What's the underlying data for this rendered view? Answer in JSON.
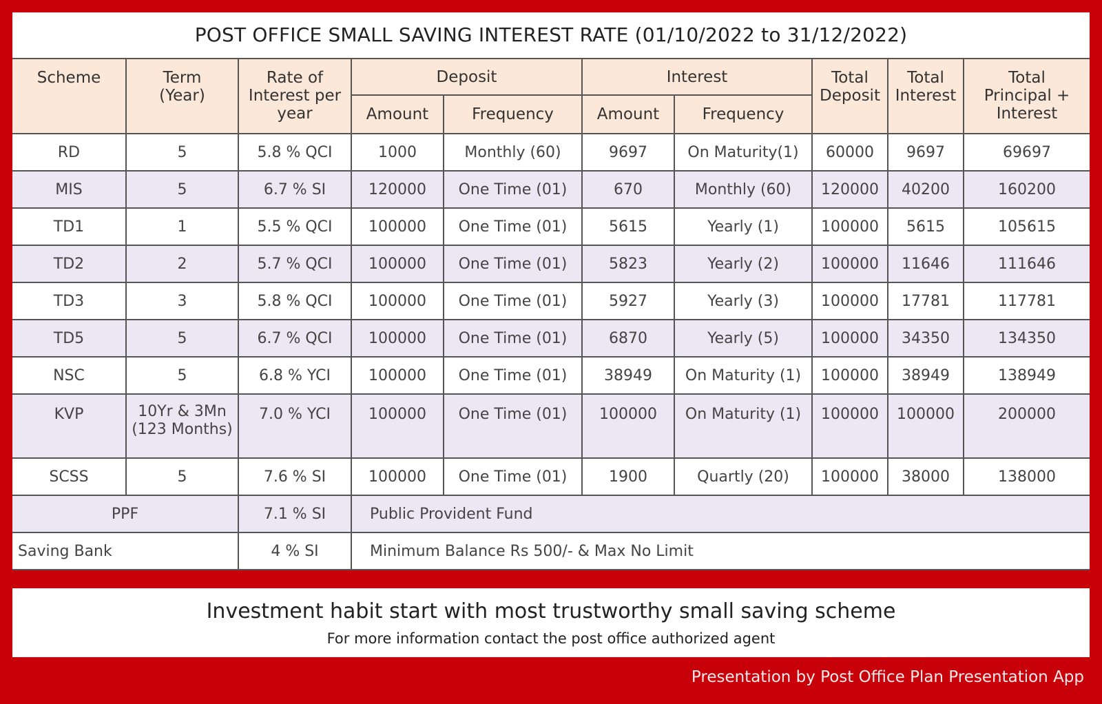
{
  "title": "POST OFFICE SMALL SAVING INTEREST RATE (01/10/2022 to 31/12/2022)",
  "headers": {
    "scheme": "Scheme",
    "term": [
      "Term",
      "(Year)"
    ],
    "rate": [
      "Rate of",
      "Interest per",
      "year"
    ],
    "deposit": "Deposit",
    "interest": "Interest",
    "amount": "Amount",
    "frequency": "Frequency",
    "total_deposit": [
      "Total",
      "Deposit"
    ],
    "total_interest": [
      "Total",
      "Interest"
    ],
    "total_principal": [
      "Total",
      "Principal +",
      "Interest"
    ]
  },
  "rows": [
    {
      "scheme": "RD",
      "term": "5",
      "rate": "5.8 % QCI",
      "dep_amount": "1000",
      "dep_freq": "Monthly (60)",
      "int_amount": "9697",
      "int_freq": "On Maturity(1)",
      "total_deposit": "60000",
      "total_interest": "9697",
      "total": "69697"
    },
    {
      "scheme": "MIS",
      "term": "5",
      "rate": "6.7 % SI",
      "dep_amount": "120000",
      "dep_freq": "One Time (01)",
      "int_amount": "670",
      "int_freq": "Monthly (60)",
      "total_deposit": "120000",
      "total_interest": "40200",
      "total": "160200"
    },
    {
      "scheme": "TD1",
      "term": "1",
      "rate": "5.5 % QCI",
      "dep_amount": "100000",
      "dep_freq": "One Time (01)",
      "int_amount": "5615",
      "int_freq": "Yearly (1)",
      "total_deposit": "100000",
      "total_interest": "5615",
      "total": "105615"
    },
    {
      "scheme": "TD2",
      "term": "2",
      "rate": "5.7 % QCI",
      "dep_amount": "100000",
      "dep_freq": "One Time (01)",
      "int_amount": "5823",
      "int_freq": "Yearly (2)",
      "total_deposit": "100000",
      "total_interest": "11646",
      "total": "111646"
    },
    {
      "scheme": "TD3",
      "term": "3",
      "rate": "5.8 % QCI",
      "dep_amount": "100000",
      "dep_freq": "One Time (01)",
      "int_amount": "5927",
      "int_freq": "Yearly (3)",
      "total_deposit": "100000",
      "total_interest": "17781",
      "total": "117781"
    },
    {
      "scheme": "TD5",
      "term": "5",
      "rate": "6.7 % QCI",
      "dep_amount": "100000",
      "dep_freq": "One Time (01)",
      "int_amount": "6870",
      "int_freq": "Yearly (5)",
      "total_deposit": "100000",
      "total_interest": "34350",
      "total": "134350"
    },
    {
      "scheme": "NSC",
      "term": "5",
      "rate": "6.8 % YCI",
      "dep_amount": "100000",
      "dep_freq": "One Time (01)",
      "int_amount": "38949",
      "int_freq": "On Maturity (1)",
      "total_deposit": "100000",
      "total_interest": "38949",
      "total": "138949"
    },
    {
      "scheme": "KVP",
      "term": [
        "10Yr & 3Mn",
        "(123 Months)"
      ],
      "rate": "7.0 % YCI",
      "dep_amount": "100000",
      "dep_freq": "One Time (01)",
      "int_amount": "100000",
      "int_freq": "On Maturity (1)",
      "total_deposit": "100000",
      "total_interest": "100000",
      "total": "200000"
    },
    {
      "scheme": "SCSS",
      "term": "5",
      "rate": "7.6 % SI",
      "dep_amount": "100000",
      "dep_freq": "One Time (01)",
      "int_amount": "1900",
      "int_freq": "Quartly (20)",
      "total_deposit": "100000",
      "total_interest": "38000",
      "total": "138000"
    }
  ],
  "ppf": {
    "scheme": "PPF",
    "rate": "7.1 % SI",
    "note": "Public Provident Fund"
  },
  "saving_bank": {
    "scheme": "Saving Bank",
    "rate": "4 % SI",
    "note": "Minimum Balance Rs 500/- & Max No Limit"
  },
  "footer": {
    "tagline": "Investment habit start with most trustworthy small saving scheme",
    "subtext": "For more information contact the post office authorized agent"
  },
  "credit": "Presentation by Post Office Plan Presentation App"
}
